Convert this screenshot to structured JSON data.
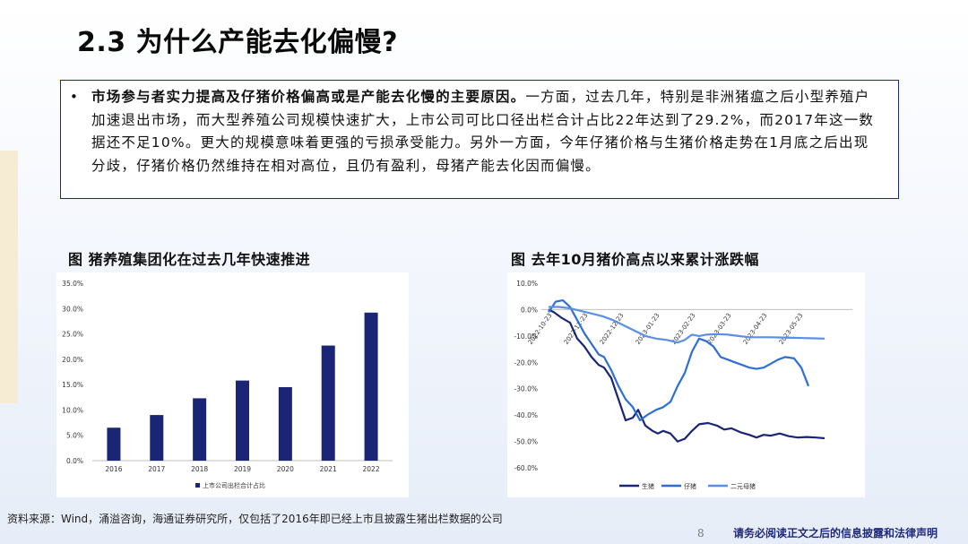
{
  "page": {
    "title": "2.3 为什么产能去化偏慢?",
    "bullet": {
      "marker": "•",
      "bold_text": "市场参与者实力提高及仔猪价格偏高或是产能去化慢的主要原因。",
      "body_text": "一方面，过去几年，特别是非洲猪瘟之后小型养殖户加速退出市场，而大型养殖公司规模快速扩大，上市公司可比口径出栏合计占比22年达到了29.2%，而2017年这一数据还不足10%。更大的规模意味着更强的亏损承受能力。另外一方面，今年仔猪价格与生猪价格走势在1月底之后出现分歧，仔猪价格仍然维持在相对高位，且仍有盈利，母猪产能去化因而偏慢。"
    },
    "source": "资料来源：Wind，涌溢咨询，海通证券研究所，仅包括了2016年即已经上市且披露生猪出栏数据的公司",
    "page_number": "8",
    "disclaimer": "请务必阅读正文之后的信息披露和法律声明"
  },
  "chart_data": [
    {
      "type": "bar",
      "title": "图  猪养殖集团化在过去几年快速推进",
      "categories": [
        "2016",
        "2017",
        "2018",
        "2019",
        "2020",
        "2021",
        "2022"
      ],
      "series": [
        {
          "name": "上市公司出栏合计占比",
          "values": [
            6.5,
            9.0,
            12.3,
            15.8,
            14.5,
            22.7,
            29.2
          ],
          "color": "#1a2576"
        }
      ],
      "ylim": [
        0,
        35
      ],
      "yticks": [
        0,
        5,
        10,
        15,
        20,
        25,
        30,
        35
      ],
      "ytick_labels": [
        "0.0%",
        "5.0%",
        "10.0%",
        "15.0%",
        "20.0%",
        "25.0%",
        "30.0%",
        "35.0%"
      ],
      "grid": false,
      "legend": "bottom"
    },
    {
      "type": "line",
      "title": "图  去年10月猪价高点以来累计涨跌幅",
      "x": [
        "2022-10-23",
        "2022-11-23",
        "2022-12-23",
        "2023-01-23",
        "2023-02-23",
        "2023-03-23",
        "2023-04-23",
        "2023-05-23"
      ],
      "x_positions": [
        0,
        1,
        2,
        3,
        4,
        5,
        6,
        7
      ],
      "ylim": [
        -60,
        10
      ],
      "yticks": [
        10,
        0,
        -10,
        -20,
        -30,
        -40,
        -50,
        -60
      ],
      "ytick_labels": [
        "10.0%",
        "0.0%",
        "-10.0%",
        "-20.0%",
        "-30.0%",
        "-40.0%",
        "-50.0%",
        "-60.0%"
      ],
      "legend": "bottom",
      "series": [
        {
          "name": "生猪",
          "color": "#1a2576",
          "points": [
            [
              0.0,
              0
            ],
            [
              0.15,
              -1
            ],
            [
              0.35,
              -3
            ],
            [
              0.6,
              -5
            ],
            [
              0.8,
              -11
            ],
            [
              1.0,
              -14
            ],
            [
              1.2,
              -18
            ],
            [
              1.4,
              -21
            ],
            [
              1.55,
              -22
            ],
            [
              1.75,
              -26
            ],
            [
              1.95,
              -34
            ],
            [
              2.15,
              -42
            ],
            [
              2.35,
              -41
            ],
            [
              2.5,
              -38
            ],
            [
              2.7,
              -44
            ],
            [
              2.9,
              -46
            ],
            [
              3.05,
              -47
            ],
            [
              3.2,
              -46
            ],
            [
              3.4,
              -47
            ],
            [
              3.6,
              -50
            ],
            [
              3.8,
              -49
            ],
            [
              4.0,
              -46
            ],
            [
              4.2,
              -43.5
            ],
            [
              4.45,
              -43
            ],
            [
              4.7,
              -44
            ],
            [
              4.9,
              -45.5
            ],
            [
              5.1,
              -45
            ],
            [
              5.35,
              -46.5
            ],
            [
              5.6,
              -47.5
            ],
            [
              5.8,
              -48.5
            ],
            [
              6.0,
              -47.5
            ],
            [
              6.2,
              -47.8
            ],
            [
              6.45,
              -47
            ],
            [
              6.7,
              -48
            ],
            [
              6.95,
              -48.5
            ],
            [
              7.2,
              -48.3
            ],
            [
              7.45,
              -48.5
            ],
            [
              7.7,
              -48.8
            ]
          ]
        },
        {
          "name": "仔猪",
          "color": "#2d6fd6",
          "points": [
            [
              0.0,
              -1
            ],
            [
              0.2,
              3
            ],
            [
              0.4,
              3.5
            ],
            [
              0.6,
              1
            ],
            [
              0.8,
              -4
            ],
            [
              1.0,
              -9
            ],
            [
              1.2,
              -13
            ],
            [
              1.4,
              -17
            ],
            [
              1.55,
              -18
            ],
            [
              1.75,
              -23
            ],
            [
              1.95,
              -29
            ],
            [
              2.15,
              -34
            ],
            [
              2.35,
              -37
            ],
            [
              2.55,
              -42
            ],
            [
              2.75,
              -40
            ],
            [
              3.0,
              -38
            ],
            [
              3.2,
              -37
            ],
            [
              3.4,
              -35
            ],
            [
              3.6,
              -29
            ],
            [
              3.8,
              -24
            ],
            [
              4.0,
              -16
            ],
            [
              4.2,
              -11
            ],
            [
              4.4,
              -12
            ],
            [
              4.6,
              -14
            ],
            [
              4.8,
              -18
            ],
            [
              5.0,
              -19
            ],
            [
              5.2,
              -20
            ],
            [
              5.4,
              -21
            ],
            [
              5.6,
              -22
            ],
            [
              5.8,
              -22.5
            ],
            [
              6.0,
              -22
            ],
            [
              6.2,
              -20.5
            ],
            [
              6.4,
              -19
            ],
            [
              6.6,
              -18
            ],
            [
              6.85,
              -18.5
            ],
            [
              7.05,
              -22
            ],
            [
              7.25,
              -29
            ]
          ]
        },
        {
          "name": "二元母猪",
          "color": "#5b8ee6",
          "points": [
            [
              0.0,
              1
            ],
            [
              0.3,
              1
            ],
            [
              0.6,
              0.5
            ],
            [
              0.9,
              -0.5
            ],
            [
              1.2,
              -1.5
            ],
            [
              1.5,
              -2.5
            ],
            [
              1.8,
              -4
            ],
            [
              2.1,
              -6
            ],
            [
              2.4,
              -8
            ],
            [
              2.7,
              -10
            ],
            [
              3.0,
              -11
            ],
            [
              3.3,
              -11.5
            ],
            [
              3.6,
              -12.5
            ],
            [
              3.8,
              -11.5
            ],
            [
              4.0,
              -9.5
            ],
            [
              4.2,
              -10
            ],
            [
              4.4,
              -9.5
            ],
            [
              4.7,
              -9.3
            ],
            [
              5.0,
              -9.5
            ],
            [
              5.3,
              -10
            ],
            [
              5.6,
              -10.5
            ],
            [
              5.9,
              -10.5
            ],
            [
              6.2,
              -10.5
            ],
            [
              6.5,
              -10.6
            ],
            [
              6.8,
              -10.7
            ],
            [
              7.1,
              -10.8
            ],
            [
              7.4,
              -10.9
            ],
            [
              7.7,
              -11
            ]
          ]
        }
      ]
    }
  ]
}
